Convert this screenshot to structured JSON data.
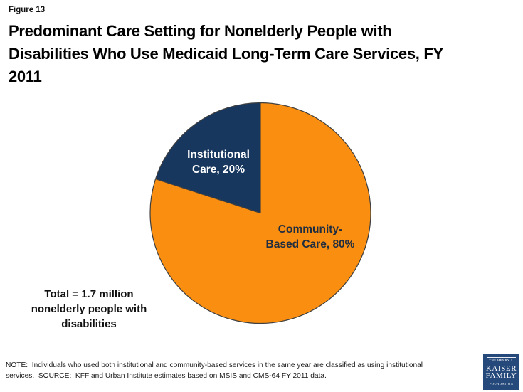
{
  "figure_label": "Figure 13",
  "title_display": "Predominant Care Setting for Nonelderly People with\nDisabilities Who Use Medicaid Long-Term Care Services, FY\n2011",
  "chart_data": {
    "type": "pie",
    "title": "Predominant Care Setting for Nonelderly People with Disabilities Who Use Medicaid Long-Term Care Services, FY 2011",
    "start_angle": "top",
    "direction": "counterclockwise",
    "legend": "none",
    "slices": [
      {
        "id": "institutional",
        "label": "Institutional Care",
        "value": 20,
        "color": "#17375E",
        "label_text": "Institutional\nCare, 20%",
        "label_color": "#FFFFFF"
      },
      {
        "id": "community-based",
        "label": "Community-Based Care",
        "value": 80,
        "color": "#FA8E10",
        "label_text": "Community-\nBased Care, 80%",
        "label_color": "#212E40"
      }
    ],
    "total_label": "Total = 1.7 million\nnonelderly people with\ndisabilities"
  },
  "note": "NOTE:  Individuals who used both institutional and community-based services in the same year are classified as using institutional\nservices.  SOURCE:  KFF and Urban Institute estimates based on MSIS and CMS-64 FY 2011 data.",
  "logo": {
    "line1": "THE HENRY J.",
    "line2": "KAISER",
    "line3": "FAMILY",
    "line4": "FOUNDATION"
  },
  "colors": {
    "institutional_slice": "#17375E",
    "community_slice": "#FA8E10",
    "pie_outline": "#3F3F3F",
    "label_on_orange": "#212E40",
    "logo_navy": "#25497B",
    "background": "#FFFFFF"
  }
}
